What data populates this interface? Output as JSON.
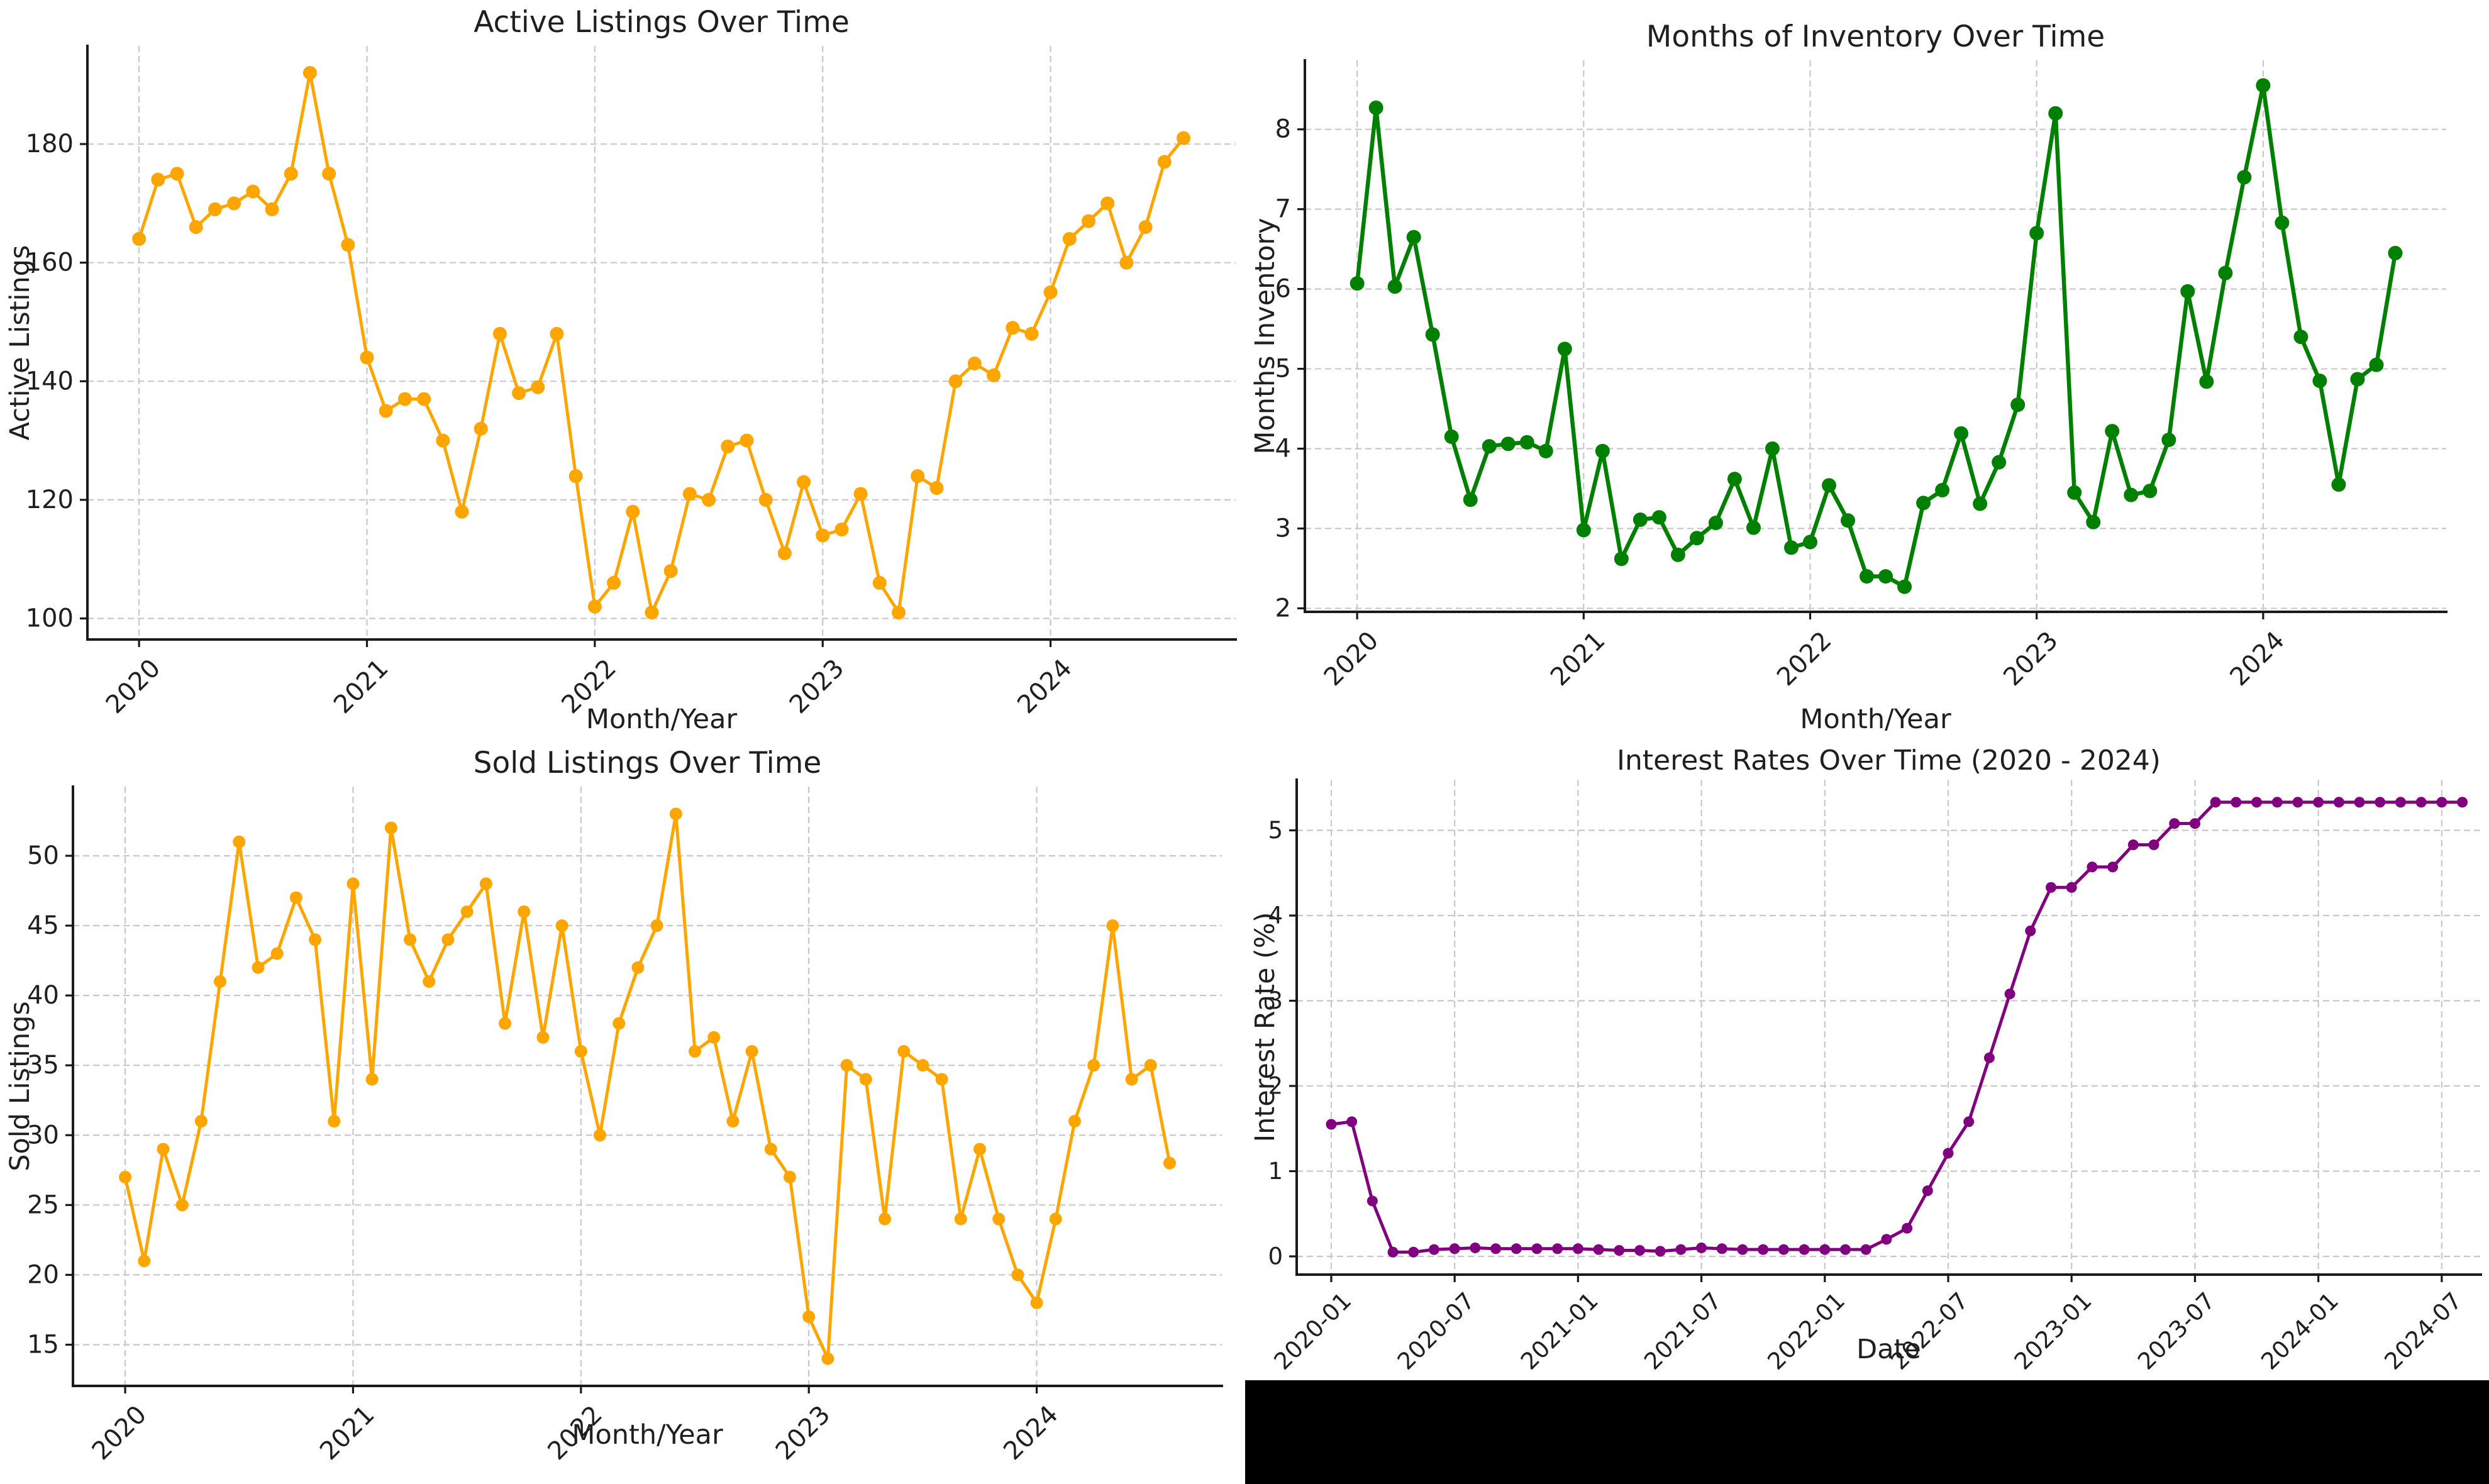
{
  "figure": {
    "background": "#ffffff",
    "black_bar_color": "#000000",
    "grid_color": "#c8c8c8",
    "spine_color": "#1a1a1a"
  },
  "x_months": [
    "2020-01",
    "2020-02",
    "2020-03",
    "2020-04",
    "2020-05",
    "2020-06",
    "2020-07",
    "2020-08",
    "2020-09",
    "2020-10",
    "2020-11",
    "2020-12",
    "2021-01",
    "2021-02",
    "2021-03",
    "2021-04",
    "2021-05",
    "2021-06",
    "2021-07",
    "2021-08",
    "2021-09",
    "2021-10",
    "2021-11",
    "2021-12",
    "2022-01",
    "2022-02",
    "2022-03",
    "2022-04",
    "2022-05",
    "2022-06",
    "2022-07",
    "2022-08",
    "2022-09",
    "2022-10",
    "2022-11",
    "2022-12",
    "2023-01",
    "2023-02",
    "2023-03",
    "2023-04",
    "2023-05",
    "2023-06",
    "2023-07",
    "2023-08",
    "2023-09",
    "2023-10",
    "2023-11",
    "2023-12",
    "2024-01",
    "2024-02",
    "2024-03",
    "2024-04",
    "2024-05",
    "2024-06",
    "2024-07",
    "2024-08"
  ],
  "chart_data": [
    {
      "type": "line",
      "id": "active-listings",
      "title": "Active Listings Over Time",
      "xlabel": "Month/Year",
      "ylabel": "Active Listings",
      "color": "#FFA500",
      "grid": true,
      "legend": null,
      "x_tick_labels": [
        "2020",
        "2021",
        "2022",
        "2023",
        "2024"
      ],
      "x_tick_positions": [
        0,
        12,
        24,
        36,
        48
      ],
      "y_ticks": [
        100,
        120,
        140,
        160,
        180
      ],
      "ylim": [
        96.45,
        196.55
      ],
      "xlim": [
        -2.72,
        57.75
      ],
      "values": [
        164,
        174,
        175,
        166,
        169,
        170,
        172,
        169,
        175,
        192,
        175,
        163,
        144,
        135,
        137,
        137,
        130,
        118,
        132,
        148,
        138,
        139,
        148,
        124,
        102,
        106,
        118,
        101,
        108,
        121,
        120,
        129,
        130,
        120,
        111,
        123,
        114,
        115,
        121,
        106,
        101,
        124,
        122,
        140,
        143,
        141,
        149,
        148,
        155,
        164,
        167,
        170,
        160,
        166,
        177,
        181
      ]
    },
    {
      "type": "line",
      "id": "months-inventory",
      "title": "Months of Inventory Over Time",
      "xlabel": "Month/Year",
      "ylabel": "Months Inventory",
      "color": "#008000",
      "grid": true,
      "legend": null,
      "x_tick_labels": [
        "2020",
        "2021",
        "2022",
        "2023",
        "2024"
      ],
      "x_tick_positions": [
        0,
        12,
        24,
        36,
        48
      ],
      "y_ticks": [
        2,
        3,
        4,
        5,
        6,
        7,
        8
      ],
      "ylim": [
        1.956,
        8.864
      ],
      "xlim": [
        -2.77,
        57.7
      ],
      "values": [
        6.07,
        8.27,
        6.03,
        6.65,
        5.43,
        4.15,
        3.36,
        4.03,
        4.06,
        4.08,
        3.97,
        5.25,
        2.98,
        3.97,
        2.62,
        3.11,
        3.14,
        2.67,
        2.88,
        3.07,
        3.62,
        3.01,
        4.0,
        2.76,
        2.83,
        3.54,
        3.1,
        2.4,
        2.4,
        2.27,
        3.32,
        3.48,
        4.19,
        3.31,
        3.83,
        4.55,
        6.7,
        8.2,
        3.45,
        3.08,
        4.22,
        3.42,
        3.47,
        4.11,
        5.97,
        4.84,
        6.2,
        7.4,
        8.55,
        6.83,
        5.4,
        4.85,
        3.55,
        4.87,
        5.05,
        6.45
      ]
    },
    {
      "type": "line",
      "id": "sold-listings",
      "title": "Sold Listings Over Time",
      "xlabel": "Month/Year",
      "ylabel": "Sold Listings",
      "color": "#FFA500",
      "grid": true,
      "legend": null,
      "x_tick_labels": [
        "2020",
        "2021",
        "2022",
        "2023",
        "2024"
      ],
      "x_tick_positions": [
        0,
        12,
        24,
        36,
        48
      ],
      "y_ticks": [
        15,
        20,
        25,
        30,
        35,
        40,
        45,
        50
      ],
      "ylim": [
        12.05,
        54.95
      ],
      "xlim": [
        -2.75,
        57.75
      ],
      "values": [
        27,
        21,
        29,
        25,
        31,
        41,
        51,
        42,
        43,
        47,
        44,
        31,
        48,
        34,
        52,
        44,
        41,
        44,
        46,
        48,
        38,
        46,
        37,
        45,
        36,
        30,
        38,
        42,
        45,
        53,
        36,
        37,
        31,
        36,
        29,
        27,
        17,
        14,
        35,
        34,
        24,
        36,
        35,
        34,
        24,
        29,
        24,
        20,
        18,
        24,
        31,
        35,
        45,
        34,
        35,
        28
      ]
    },
    {
      "type": "line",
      "id": "interest-rates",
      "title": "Interest Rates Over Time (2020 - 2024)",
      "xlabel": "Date",
      "ylabel": "Interest Rate (%)",
      "color": "#800080",
      "grid": true,
      "legend": null,
      "x_tick_labels": [
        "2020-01",
        "2020-07",
        "2021-01",
        "2021-07",
        "2022-01",
        "2022-07",
        "2023-01",
        "2023-07",
        "2024-01",
        "2024-07"
      ],
      "x_tick_positions": [
        0,
        6,
        12,
        18,
        24,
        30,
        36,
        42,
        48,
        54
      ],
      "y_ticks": [
        0,
        1,
        2,
        3,
        4,
        5
      ],
      "ylim": [
        -0.214,
        5.594
      ],
      "xlim": [
        -1.68,
        55.9
      ],
      "values": [
        1.55,
        1.58,
        0.65,
        0.05,
        0.05,
        0.08,
        0.09,
        0.1,
        0.09,
        0.09,
        0.09,
        0.09,
        0.09,
        0.08,
        0.07,
        0.07,
        0.06,
        0.08,
        0.1,
        0.09,
        0.08,
        0.08,
        0.08,
        0.08,
        0.08,
        0.08,
        0.08,
        0.2,
        0.33,
        0.77,
        1.21,
        1.58,
        2.33,
        3.08,
        3.82,
        4.33,
        4.33,
        4.57,
        4.57,
        4.83,
        4.83,
        5.08,
        5.08,
        5.33,
        5.33,
        5.33,
        5.33,
        5.33,
        5.33,
        5.33,
        5.33,
        5.33,
        5.33,
        5.33,
        5.33,
        5.33
      ]
    }
  ]
}
